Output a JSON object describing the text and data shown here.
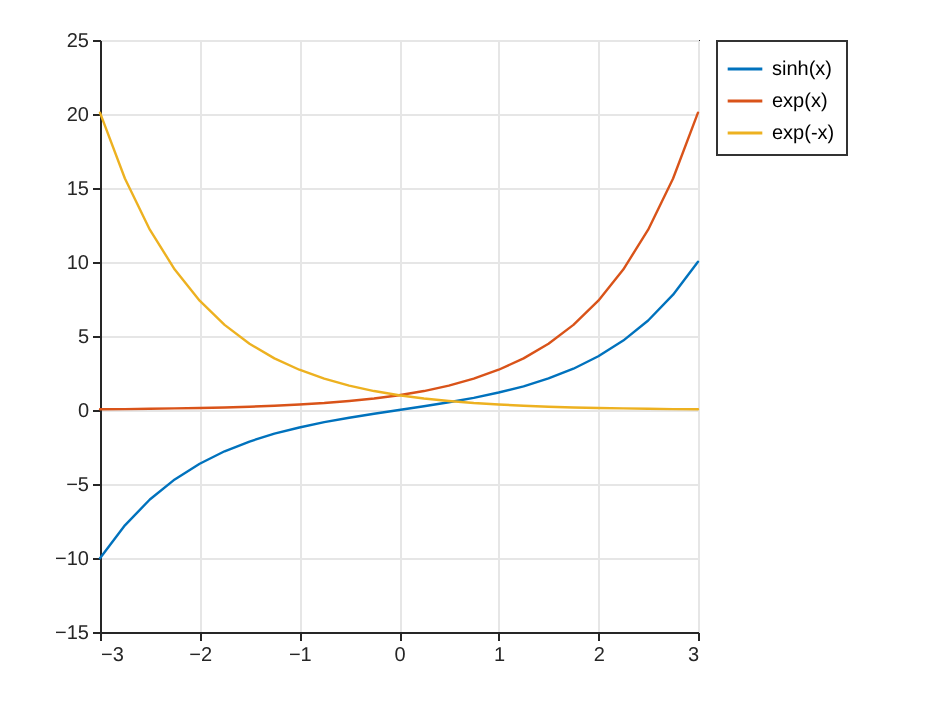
{
  "chart_data": {
    "type": "line",
    "x": [
      -3,
      -2.75,
      -2.5,
      -2.25,
      -2,
      -1.75,
      -1.5,
      -1.25,
      -1,
      -0.75,
      -0.5,
      -0.25,
      0,
      0.25,
      0.5,
      0.75,
      1,
      1.25,
      1.5,
      1.75,
      2,
      2.25,
      2.5,
      2.75,
      3
    ],
    "series": [
      {
        "name": "sinh(x)",
        "color": "#0072bd",
        "values": [
          -10.02,
          -7.79,
          -6.05,
          -4.69,
          -3.63,
          -2.79,
          -2.13,
          -1.6,
          -1.18,
          -0.82,
          -0.52,
          -0.25,
          0,
          0.25,
          0.52,
          0.82,
          1.18,
          1.6,
          2.13,
          2.79,
          3.63,
          4.69,
          6.05,
          7.79,
          10.02
        ]
      },
      {
        "name": "exp(x)",
        "color": "#d95319",
        "values": [
          0.05,
          0.06,
          0.08,
          0.11,
          0.14,
          0.17,
          0.22,
          0.29,
          0.37,
          0.47,
          0.61,
          0.78,
          1,
          1.28,
          1.65,
          2.12,
          2.72,
          3.49,
          4.48,
          5.75,
          7.39,
          9.49,
          12.18,
          15.64,
          20.09
        ]
      },
      {
        "name": "exp(-x)",
        "color": "#edb120",
        "values": [
          20.09,
          15.64,
          12.18,
          9.49,
          7.39,
          5.75,
          4.48,
          3.49,
          2.72,
          2.12,
          1.65,
          1.28,
          1,
          0.78,
          0.61,
          0.47,
          0.37,
          0.29,
          0.22,
          0.17,
          0.14,
          0.11,
          0.08,
          0.06,
          0.05
        ]
      }
    ],
    "xlim": [
      -3,
      3
    ],
    "xticks": [
      -3,
      -2,
      -1,
      0,
      1,
      2,
      3
    ],
    "ylim": [
      -15,
      25
    ],
    "yticks": [
      -15,
      -10,
      -5,
      0,
      5,
      10,
      15,
      20,
      25
    ],
    "grid": true,
    "legend": "top right"
  }
}
